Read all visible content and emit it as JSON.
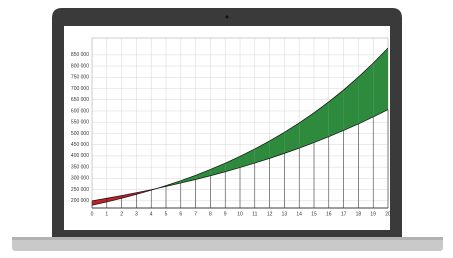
{
  "chart_data": {
    "type": "area-difference",
    "x": [
      0,
      1,
      2,
      3,
      4,
      5,
      6,
      7,
      8,
      9,
      10,
      11,
      12,
      13,
      14,
      15,
      16,
      17,
      18,
      19,
      20
    ],
    "series": [
      {
        "color": "#2e8b3e",
        "values": [
          180000,
          194900,
          211000,
          228400,
          247200,
          267700,
          289800,
          313700,
          339600,
          367700,
          398100,
          430900,
          466500,
          505100,
          546800,
          592000,
          640900,
          693800,
          751100,
          813200,
          880300
        ]
      },
      {
        "color": "#c0202a",
        "values": [
          200000,
          211400,
          223400,
          236200,
          249600,
          263900,
          278900,
          294800,
          311600,
          329400,
          348200,
          368000,
          389000,
          411200,
          434600,
          459400,
          485600,
          513200,
          542500,
          573400,
          606100
        ]
      }
    ],
    "xlim": [
      0,
      20
    ],
    "xticks": [
      0,
      1,
      2,
      3,
      4,
      5,
      6,
      7,
      8,
      9,
      10,
      11,
      12,
      13,
      14,
      15,
      16,
      17,
      18,
      19,
      20
    ],
    "ylim": [
      168000,
      925000
    ],
    "yticks": [
      {
        "value": 200000,
        "label": "200 000"
      },
      {
        "value": 250000,
        "label": "250 000"
      },
      {
        "value": 300000,
        "label": "300 000"
      },
      {
        "value": 350000,
        "label": "350 000"
      },
      {
        "value": 400000,
        "label": "400 000"
      },
      {
        "value": 450000,
        "label": "450 000"
      },
      {
        "value": 500000,
        "label": "500 000"
      },
      {
        "value": 550000,
        "label": "550 000"
      },
      {
        "value": 600000,
        "label": "600 000"
      },
      {
        "value": 650000,
        "label": "650 000"
      },
      {
        "value": 700000,
        "label": "700 000"
      },
      {
        "value": 750000,
        "label": "750 000"
      },
      {
        "value": 800000,
        "label": "800 000"
      },
      {
        "value": 850000,
        "label": "850 000"
      }
    ],
    "grid": true
  }
}
